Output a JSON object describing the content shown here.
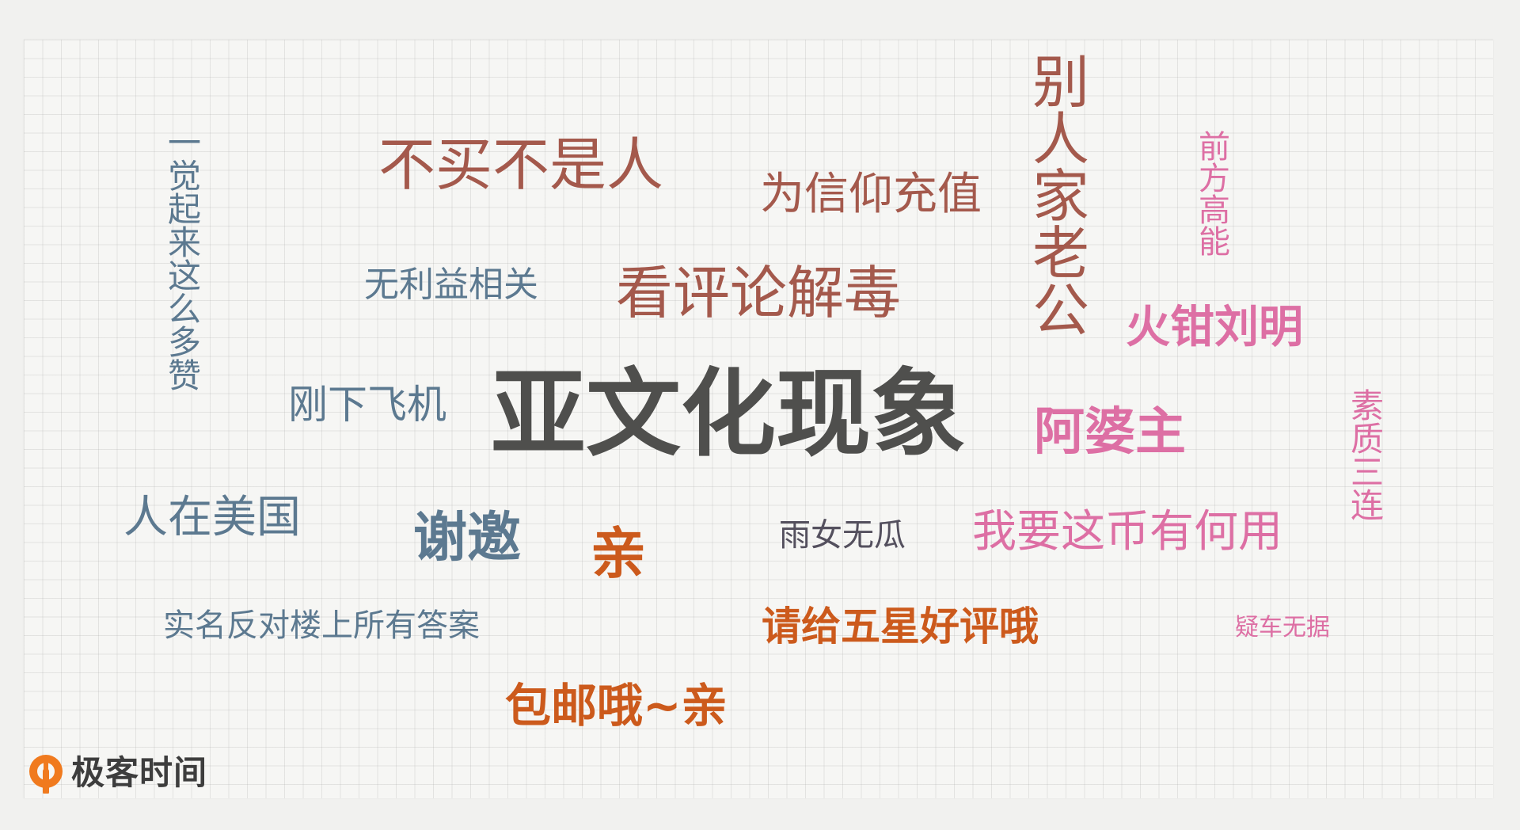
{
  "words": {
    "yajuelaizhemeduozan": "一觉起来这么多赞",
    "bumaibushiren": "不买不是人",
    "weixinyangchongzhi": "为信仰充值",
    "bierenjialaogong": "别人家老公",
    "qianfanggaoneng": "前方高能",
    "wuliyixiangguan": "无利益相关",
    "kanpinglunjiedu": "看评论解毒",
    "huoqianliuming": "火钳刘明",
    "gangxiafeiji": "刚下飞机",
    "yawenhuaxianxiang": "亚文化现象",
    "apozhu": "阿婆主",
    "suzhisanlian": "素质三连",
    "renzaimeiguo": "人在美国",
    "xieyao": "谢邀",
    "qin": "亲",
    "yunvwugua": "雨女无瓜",
    "woyaozhebiyouheyong": "我要这币有何用",
    "shimingfandui": "实名反对楼上所有答案",
    "qinggeiwuxing": "请给五星好评哦",
    "yichewuju": "疑车无据",
    "baoyoue": "包邮哦~亲"
  },
  "logo": {
    "text": "极客时间",
    "icon": "geektime-logo-icon"
  },
  "colors": {
    "red": "#a4594c",
    "blue": "#5c7990",
    "pink": "#dd6fa4",
    "orange": "#cc5a1c",
    "dark": "#4f4f4d",
    "purple": "#54505e",
    "logo_orange": "#f07a1e"
  }
}
